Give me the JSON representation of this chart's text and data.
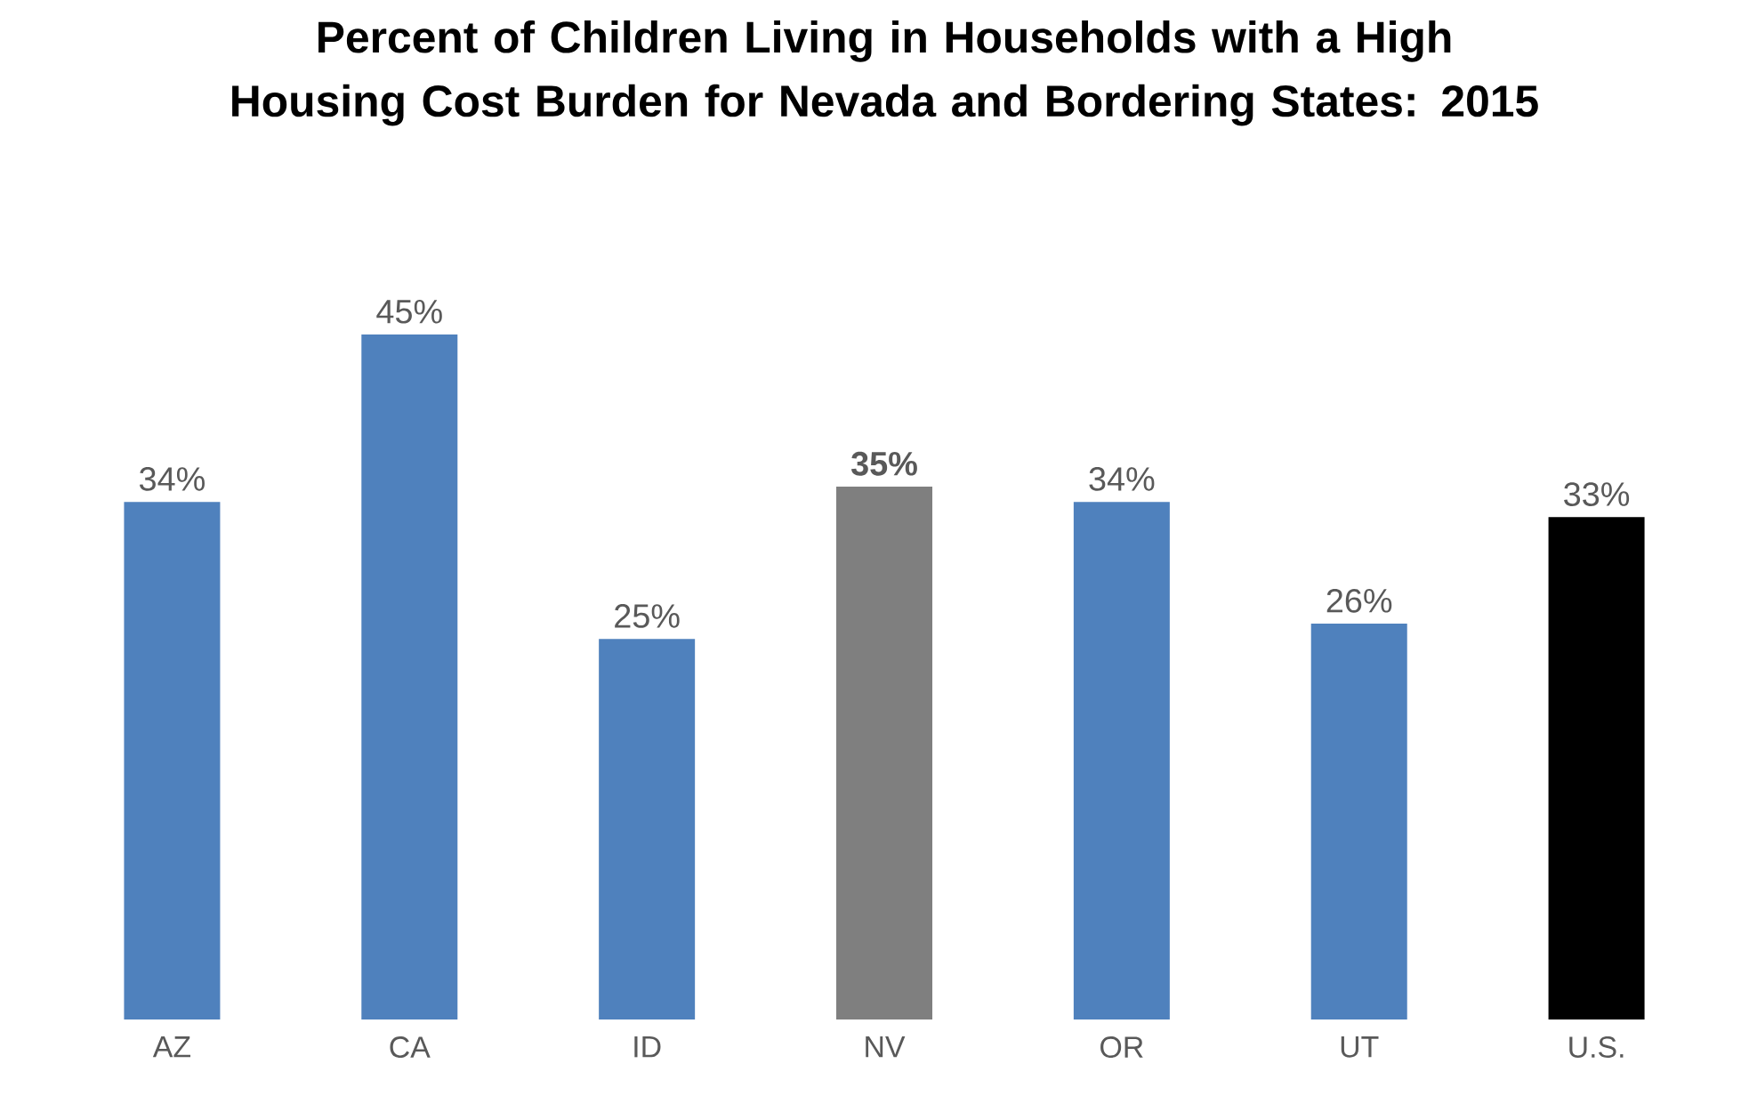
{
  "chart_data": {
    "type": "bar",
    "title": "Percent of Children Living in Households with a High Housing Cost Burden for Nevada and Bordering States: 2015",
    "categories": [
      "AZ",
      "CA",
      "ID",
      "NV",
      "OR",
      "UT",
      "U.S."
    ],
    "values": [
      34,
      45,
      25,
      35,
      34,
      26,
      33
    ],
    "value_labels": [
      "34%",
      "45%",
      "25%",
      "**35%**",
      "34%",
      "26%",
      "33%"
    ],
    "colors": [
      "#4f81bd",
      "#4f81bd",
      "#4f81bd",
      "#7f7f7f",
      "#4f81bd",
      "#4f81bd",
      "#000000"
    ]
  }
}
